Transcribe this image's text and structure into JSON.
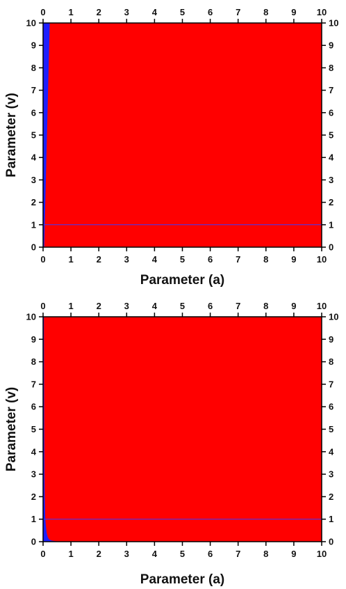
{
  "chart_data": [
    {
      "type": "heatmap",
      "xlabel": "Parameter (a)",
      "ylabel": "Parameter (v)",
      "xlim": [
        0,
        10
      ],
      "ylim": [
        0,
        10
      ],
      "xticks": [
        "0",
        "1",
        "2",
        "3",
        "4",
        "5",
        "6",
        "7",
        "8",
        "9",
        "10"
      ],
      "yticks": [
        "0",
        "1",
        "2",
        "3",
        "4",
        "5",
        "6",
        "7",
        "8",
        "9",
        "10"
      ],
      "mirror_ticks": true,
      "region_colors": {
        "background": "#ff0000",
        "region": "#1f1fff",
        "line": "#3a3aff"
      },
      "reference_line_v": 1,
      "region_boundary": {
        "v": [
          0,
          0.5,
          1,
          2,
          3,
          4,
          5,
          6,
          7,
          8,
          9,
          10
        ],
        "a": [
          0.04,
          0.05,
          0.06,
          0.08,
          0.1,
          0.12,
          0.14,
          0.16,
          0.18,
          0.2,
          0.22,
          0.24
        ]
      }
    },
    {
      "type": "heatmap",
      "xlabel": "Parameter (a)",
      "ylabel": "Parameter (v)",
      "xlim": [
        0,
        10
      ],
      "ylim": [
        0,
        10
      ],
      "xticks": [
        "0",
        "1",
        "2",
        "3",
        "4",
        "5",
        "6",
        "7",
        "8",
        "9",
        "10"
      ],
      "yticks": [
        "0",
        "1",
        "2",
        "3",
        "4",
        "5",
        "6",
        "7",
        "8",
        "9",
        "10"
      ],
      "mirror_ticks": true,
      "region_colors": {
        "background": "#ff0000",
        "region": "#1f1fff",
        "line": "#3a3aff"
      },
      "reference_line_v": 1,
      "region_boundary": {
        "v": [
          10,
          5,
          3,
          2,
          1,
          0.7,
          0.4,
          0.2,
          0.1,
          0.05,
          0.02,
          0
        ],
        "a": [
          0.03,
          0.04,
          0.05,
          0.06,
          0.08,
          0.1,
          0.13,
          0.17,
          0.22,
          0.3,
          0.45,
          0.8
        ]
      }
    }
  ]
}
